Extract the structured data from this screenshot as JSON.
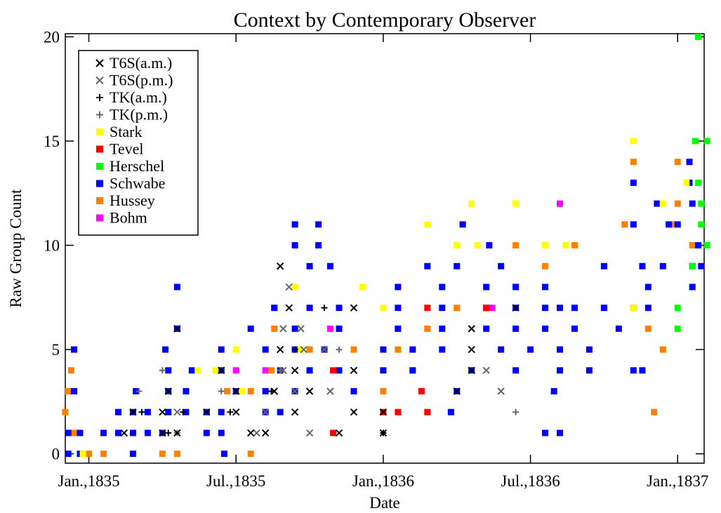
{
  "chart_data": {
    "type": "scatter",
    "title": "Context by Contemporary Observer",
    "xlabel": "Date",
    "ylabel": "Raw Group Count",
    "xlim": [
      1834.92,
      1837.09
    ],
    "ylim": [
      -0.45,
      20.15
    ],
    "xticks": [
      {
        "value": 1835.0,
        "label": "Jan.,1835"
      },
      {
        "value": 1835.5,
        "label": "Jul.,1835"
      },
      {
        "value": 1836.0,
        "label": "Jan.,1836"
      },
      {
        "value": 1836.5,
        "label": "Jul.,1836"
      },
      {
        "value": 1837.0,
        "label": "Jan.,1837"
      }
    ],
    "yticks": [
      0,
      5,
      10,
      15,
      20
    ],
    "legend": "upper left",
    "series": [
      {
        "name": "T6S(a.m.)",
        "color": "#000000",
        "marker": "x",
        "x": [
          1835.12,
          1835.25,
          1835.3,
          1835.55,
          1835.6,
          1835.85,
          1836.0,
          1835.15,
          1835.25,
          1835.4,
          1835.5,
          1835.7,
          1835.9,
          1836.0,
          1835.27,
          1835.5,
          1835.63,
          1835.75,
          1836.25,
          1835.45,
          1835.7,
          1835.9,
          1836.3,
          1835.65,
          1836.3,
          1835.3,
          1835.68,
          1835.9,
          1836.3,
          1836.45,
          1835.65
        ],
        "y": [
          1,
          1,
          1,
          1,
          1,
          1,
          1,
          2,
          2,
          2,
          2,
          2,
          2,
          2,
          3,
          3,
          3,
          3,
          3,
          4,
          4,
          4,
          4,
          5,
          5,
          6,
          7,
          7,
          6,
          7,
          9
        ]
      },
      {
        "name": "T6S(p.m.)",
        "color": "#666666",
        "marker": "x",
        "x": [
          1835.57,
          1835.75,
          1835.3,
          1835.6,
          1835.7,
          1835.82,
          1835.66,
          1835.73,
          1835.8,
          1835.66,
          1835.72,
          1835.68,
          1836.35,
          1836.4
        ],
        "y": [
          1,
          1,
          2,
          2,
          3,
          3,
          4,
          5,
          5,
          6,
          6,
          8,
          4,
          3
        ]
      },
      {
        "name": "TK(a.m.)",
        "color": "#000000",
        "marker": "plus",
        "x": [
          1835.27,
          1835.18,
          1835.32,
          1835.48,
          1835.62,
          1835.7,
          1835.8,
          1836.0
        ],
        "y": [
          1,
          2,
          2,
          2,
          3,
          5,
          7,
          1
        ]
      },
      {
        "name": "TK(p.m.)",
        "color": "#666666",
        "marker": "plus",
        "x": [
          1835.3,
          1835.17,
          1835.25,
          1835.45,
          1835.65,
          1836.45,
          1835.85
        ],
        "y": [
          1,
          3,
          4,
          3,
          4,
          2,
          5
        ]
      },
      {
        "name": "Stark",
        "color": "#ffff00",
        "marker": "square",
        "x": [
          1834.98,
          1835.37,
          1835.43,
          1835.5,
          1835.52,
          1835.7,
          1835.72,
          1835.93,
          1836.0,
          1836.15,
          1836.25,
          1836.3,
          1836.32,
          1836.45,
          1836.55,
          1836.62,
          1836.85,
          1837.03,
          1836.85,
          1836.95
        ],
        "y": [
          0,
          4,
          4,
          5,
          3,
          8,
          5,
          8,
          7,
          11,
          10,
          12,
          10,
          12,
          10,
          10,
          15,
          13,
          7,
          12
        ]
      },
      {
        "name": "Tevel",
        "color": "#ff0000",
        "marker": "square",
        "x": [
          1835.83,
          1836.0,
          1836.05,
          1836.15,
          1836.13,
          1835.83,
          1836.15,
          1836.35
        ],
        "y": [
          1,
          2,
          2,
          2,
          3,
          4,
          7,
          7
        ]
      },
      {
        "name": "Herschel",
        "color": "#00ff00",
        "marker": "square",
        "x": [
          1837.07,
          1837.06,
          1837.1,
          1837.07,
          1837.08,
          1837.08,
          1837.1,
          1837.0,
          1837.0,
          1837.05
        ],
        "y": [
          20,
          15,
          15,
          13,
          12,
          11,
          10,
          7,
          6,
          9
        ]
      },
      {
        "name": "Schwabe",
        "color": "#0000ff",
        "marker": "square",
        "x": [
          1834.93,
          1834.97,
          1835.15,
          1835.46,
          1834.93,
          1834.97,
          1835.05,
          1835.1,
          1835.15,
          1835.2,
          1835.25,
          1835.4,
          1835.45,
          1835.1,
          1835.15,
          1835.2,
          1835.27,
          1835.33,
          1835.4,
          1835.45,
          1835.6,
          1835.65,
          1836.23,
          1836.55,
          1836.6,
          1834.95,
          1835.16,
          1835.27,
          1835.33,
          1835.5,
          1835.6,
          1835.7,
          1835.9,
          1836.25,
          1836.58,
          1835.27,
          1835.35,
          1835.45,
          1835.65,
          1835.75,
          1835.85,
          1836.0,
          1836.1,
          1836.3,
          1836.45,
          1836.6,
          1836.7,
          1836.85,
          1836.88,
          1834.95,
          1835.26,
          1835.45,
          1835.6,
          1835.7,
          1835.8,
          1836.0,
          1836.1,
          1836.2,
          1836.4,
          1836.5,
          1836.6,
          1836.7,
          1835.3,
          1835.55,
          1835.7,
          1835.85,
          1836.05,
          1836.2,
          1836.35,
          1836.45,
          1836.55,
          1836.65,
          1836.8,
          1835.63,
          1835.75,
          1835.85,
          1836.05,
          1836.2,
          1836.35,
          1836.45,
          1836.55,
          1836.6,
          1836.65,
          1836.75,
          1836.85,
          1836.9,
          1835.3,
          1836.05,
          1836.2,
          1836.35,
          1836.45,
          1836.55,
          1836.9,
          1837.05,
          1835.75,
          1835.82,
          1836.15,
          1836.25,
          1836.4,
          1836.75,
          1836.88,
          1836.95,
          1837.05,
          1837.08,
          1835.7,
          1835.78,
          1836.36,
          1837.07,
          1835.7,
          1835.78,
          1836.27,
          1836.85,
          1837.0,
          1836.97,
          1836.93,
          1837.05,
          1836.85,
          1837.04,
          1837.04
        ],
        "y": [
          0,
          0,
          0,
          0,
          1,
          1,
          1,
          1,
          1,
          1,
          1,
          1,
          1,
          2,
          2,
          2,
          2,
          2,
          2,
          2,
          2,
          2,
          2,
          1,
          1,
          3,
          3,
          3,
          3,
          3,
          3,
          3,
          3,
          3,
          3,
          4,
          4,
          4,
          4,
          4,
          4,
          4,
          4,
          4,
          4,
          4,
          4,
          4,
          4,
          5,
          5,
          5,
          5,
          5,
          5,
          5,
          5,
          5,
          5,
          5,
          5,
          5,
          6,
          6,
          6,
          6,
          6,
          6,
          6,
          6,
          6,
          6,
          6,
          7,
          7,
          7,
          7,
          7,
          7,
          7,
          7,
          7,
          7,
          7,
          7,
          7,
          8,
          8,
          8,
          8,
          8,
          8,
          8,
          8,
          9,
          9,
          9,
          9,
          9,
          9,
          9,
          9,
          9,
          9,
          10,
          10,
          10,
          10,
          11,
          11,
          11,
          11,
          11,
          11,
          12,
          12,
          13,
          13,
          14
        ]
      },
      {
        "name": "Hussey",
        "color": "#ff8000",
        "marker": "square",
        "x": [
          1834.95,
          1834.92,
          1834.93,
          1834.94,
          1834.95,
          1835.0,
          1835.05,
          1835.25,
          1835.3,
          1835.55,
          1835.1,
          1835.4,
          1835.47,
          1835.55,
          1835.62,
          1835.63,
          1835.63,
          1835.75,
          1835.9,
          1836.0,
          1836.05,
          1836.1,
          1836.15,
          1836.25,
          1836.35,
          1836.45,
          1836.55,
          1836.65,
          1836.75,
          1836.82,
          1836.85,
          1836.92,
          1836.95,
          1837.0,
          1837.0,
          1837.05,
          1836.98,
          1836.9
        ],
        "y": [
          1,
          2,
          3,
          4,
          5,
          0,
          0,
          0,
          0,
          0,
          1,
          2,
          3,
          3,
          4,
          6,
          7,
          5,
          5,
          3,
          5,
          4,
          6,
          7,
          8,
          10,
          9,
          10,
          7,
          11,
          14,
          2,
          5,
          12,
          14,
          10,
          11,
          6
        ]
      },
      {
        "name": "Bohm",
        "color": "#ff00ff",
        "marker": "square",
        "x": [
          1835.6,
          1835.5,
          1835.6,
          1835.82,
          1835.85,
          1836.45,
          1836.6,
          1836.37
        ],
        "y": [
          2,
          4,
          4,
          6,
          6,
          8,
          12,
          7
        ]
      }
    ]
  }
}
